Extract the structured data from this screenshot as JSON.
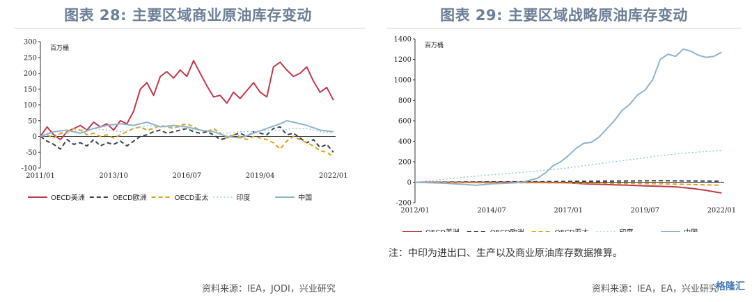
{
  "left": {
    "title": "图表 28: 主要区域商业原油库存变动",
    "source": "资料来源：IEA，JODI，兴业研究"
  },
  "right": {
    "title": "图表 29: 主要区域战略原油库存变动",
    "note": "注：中印为进出口、生产以及商业原油库存数据推算。",
    "source": "资料来源：IEA，EA，兴业研究"
  },
  "watermark": "格隆汇",
  "chart_data": [
    {
      "type": "line",
      "unit_label": "百万桶",
      "ylim": [
        -100,
        300
      ],
      "yticks": [
        -100,
        -50,
        0,
        50,
        100,
        150,
        200,
        250,
        300
      ],
      "xlim": [
        2011.0,
        2022.083
      ],
      "xticks": [
        {
          "label": "2011/01",
          "x": 2011.0
        },
        {
          "label": "2013/10",
          "x": 2013.75
        },
        {
          "label": "2016/07",
          "x": 2016.5
        },
        {
          "label": "2019/04",
          "x": 2019.25
        },
        {
          "label": "2022/01",
          "x": 2022.0
        }
      ],
      "grid": false,
      "legend_position": "bottom",
      "series": [
        {
          "name": "OECD美洲",
          "color": "#c0394b",
          "dash": "solid",
          "x": [
            2011.0,
            2011.25,
            2011.5,
            2011.75,
            2012.0,
            2012.25,
            2012.5,
            2012.75,
            2013.0,
            2013.25,
            2013.5,
            2013.75,
            2014.0,
            2014.25,
            2014.5,
            2014.75,
            2015.0,
            2015.25,
            2015.5,
            2015.75,
            2016.0,
            2016.25,
            2016.5,
            2016.75,
            2017.0,
            2017.25,
            2017.5,
            2017.75,
            2018.0,
            2018.25,
            2018.5,
            2018.75,
            2019.0,
            2019.25,
            2019.5,
            2019.75,
            2020.0,
            2020.25,
            2020.5,
            2020.75,
            2021.0,
            2021.25,
            2021.5,
            2021.75,
            2022.0
          ],
          "y": [
            0,
            30,
            5,
            -10,
            15,
            25,
            35,
            20,
            45,
            30,
            40,
            20,
            50,
            40,
            80,
            150,
            170,
            130,
            190,
            205,
            185,
            210,
            190,
            240,
            200,
            160,
            125,
            130,
            105,
            140,
            120,
            145,
            170,
            140,
            125,
            220,
            235,
            210,
            190,
            200,
            220,
            175,
            140,
            155,
            115
          ]
        },
        {
          "name": "OECD欧洲",
          "color": "#3a3f4a",
          "dash": "6,4",
          "x": [
            2011.0,
            2011.25,
            2011.5,
            2011.75,
            2012.0,
            2012.25,
            2012.5,
            2012.75,
            2013.0,
            2013.25,
            2013.5,
            2013.75,
            2014.0,
            2014.25,
            2014.5,
            2014.75,
            2015.0,
            2015.25,
            2015.5,
            2015.75,
            2016.0,
            2016.25,
            2016.5,
            2016.75,
            2017.0,
            2017.25,
            2017.5,
            2017.75,
            2018.0,
            2018.25,
            2018.5,
            2018.75,
            2019.0,
            2019.25,
            2019.5,
            2019.75,
            2020.0,
            2020.25,
            2020.5,
            2020.75,
            2021.0,
            2021.25,
            2021.5,
            2021.75,
            2022.0
          ],
          "y": [
            0,
            -15,
            -25,
            -40,
            -10,
            -25,
            -20,
            -30,
            -10,
            -30,
            -20,
            -25,
            -15,
            -30,
            -15,
            0,
            5,
            15,
            20,
            10,
            15,
            20,
            25,
            15,
            10,
            15,
            5,
            -10,
            -5,
            5,
            10,
            0,
            15,
            10,
            5,
            25,
            30,
            5,
            10,
            -5,
            -20,
            -10,
            -35,
            -25,
            -50
          ]
        },
        {
          "name": "OECD亚太",
          "color": "#e0a020",
          "dash": "6,4",
          "x": [
            2011.0,
            2011.25,
            2011.5,
            2011.75,
            2012.0,
            2012.25,
            2012.5,
            2012.75,
            2013.0,
            2013.25,
            2013.5,
            2013.75,
            2014.0,
            2014.25,
            2014.5,
            2014.75,
            2015.0,
            2015.25,
            2015.5,
            2015.75,
            2016.0,
            2016.25,
            2016.5,
            2016.75,
            2017.0,
            2017.25,
            2017.5,
            2017.75,
            2018.0,
            2018.25,
            2018.5,
            2018.75,
            2019.0,
            2019.25,
            2019.5,
            2019.75,
            2020.0,
            2020.25,
            2020.5,
            2020.75,
            2021.0,
            2021.25,
            2021.5,
            2021.75,
            2022.0
          ],
          "y": [
            0,
            5,
            -5,
            10,
            15,
            25,
            20,
            5,
            10,
            0,
            5,
            -5,
            5,
            15,
            25,
            30,
            20,
            25,
            35,
            30,
            25,
            35,
            40,
            30,
            20,
            15,
            25,
            10,
            -5,
            5,
            0,
            -10,
            0,
            -5,
            -10,
            -20,
            -40,
            -15,
            0,
            -10,
            -20,
            -30,
            -45,
            -50,
            -65
          ]
        },
        {
          "name": "印度",
          "color": "#7fc8cf",
          "dash": "2,3",
          "x": [
            2011.0,
            2011.5,
            2012.0,
            2012.5,
            2013.0,
            2013.5,
            2014.0,
            2014.5,
            2015.0,
            2015.5,
            2016.0,
            2016.5,
            2017.0,
            2017.5,
            2018.0,
            2018.5,
            2019.0,
            2019.5,
            2020.0,
            2020.5,
            2021.0,
            2021.5,
            2022.0
          ],
          "y": [
            0,
            5,
            10,
            20,
            25,
            20,
            15,
            25,
            35,
            30,
            30,
            25,
            20,
            15,
            10,
            15,
            15,
            20,
            20,
            25,
            25,
            15,
            10
          ]
        },
        {
          "name": "中国",
          "color": "#8fb3cc",
          "dash": "solid",
          "x": [
            2011.0,
            2011.5,
            2012.0,
            2012.5,
            2013.0,
            2013.5,
            2014.0,
            2014.5,
            2015.0,
            2015.5,
            2016.0,
            2016.5,
            2017.0,
            2017.5,
            2018.0,
            2018.5,
            2019.0,
            2019.5,
            2020.0,
            2020.25,
            2020.5,
            2020.75,
            2021.0,
            2021.5,
            2022.0
          ],
          "y": [
            0,
            15,
            20,
            10,
            25,
            35,
            40,
            35,
            45,
            30,
            35,
            30,
            20,
            15,
            0,
            -5,
            10,
            25,
            40,
            50,
            45,
            40,
            35,
            20,
            15
          ]
        }
      ]
    },
    {
      "type": "line",
      "unit_label": "百万桶",
      "ylim": [
        -200,
        1400
      ],
      "yticks": [
        -200,
        0,
        200,
        400,
        600,
        800,
        1000,
        1200,
        1400
      ],
      "xlim": [
        2012.0,
        2022.083
      ],
      "xticks": [
        {
          "label": "2012/01",
          "x": 2012.0
        },
        {
          "label": "2014/07",
          "x": 2014.5
        },
        {
          "label": "2017/01",
          "x": 2017.0
        },
        {
          "label": "2019/07",
          "x": 2019.5
        },
        {
          "label": "2022/01",
          "x": 2022.0
        }
      ],
      "grid": false,
      "legend_position": "bottom",
      "series": [
        {
          "name": "OECD美洲",
          "color": "#c0394b",
          "dash": "solid",
          "x": [
            2012.0,
            2013.0,
            2014.0,
            2015.0,
            2016.0,
            2017.0,
            2017.5,
            2018.0,
            2018.5,
            2019.0,
            2019.5,
            2020.0,
            2020.5,
            2021.0,
            2021.5,
            2022.0
          ],
          "y": [
            0,
            0,
            0,
            0,
            0,
            -5,
            -15,
            -20,
            -25,
            -30,
            -35,
            -40,
            -45,
            -60,
            -80,
            -105
          ]
        },
        {
          "name": "OECD欧洲",
          "color": "#3a3f4a",
          "dash": "6,4",
          "x": [
            2012.0,
            2014.0,
            2016.0,
            2018.0,
            2020.0,
            2022.0
          ],
          "y": [
            0,
            3,
            5,
            10,
            15,
            10
          ]
        },
        {
          "name": "OECD亚太",
          "color": "#e0a020",
          "dash": "6,4",
          "x": [
            2012.0,
            2014.0,
            2016.0,
            2018.0,
            2020.0,
            2022.0
          ],
          "y": [
            0,
            -5,
            -5,
            -10,
            -15,
            -30
          ]
        },
        {
          "name": "印度",
          "color": "#7fc8cf",
          "dash": "2,3",
          "x": [
            2012.0,
            2013.0,
            2014.0,
            2015.0,
            2016.0,
            2017.0,
            2018.0,
            2019.0,
            2020.0,
            2021.0,
            2022.0
          ],
          "y": [
            0,
            30,
            60,
            85,
            110,
            140,
            180,
            220,
            260,
            290,
            310
          ]
        },
        {
          "name": "中国",
          "color": "#8fb3cc",
          "dash": "solid",
          "x": [
            2012.0,
            2012.5,
            2013.0,
            2013.5,
            2014.0,
            2014.5,
            2015.0,
            2015.5,
            2016.0,
            2016.25,
            2016.5,
            2016.75,
            2017.0,
            2017.25,
            2017.5,
            2017.75,
            2018.0,
            2018.25,
            2018.5,
            2018.75,
            2019.0,
            2019.25,
            2019.5,
            2019.75,
            2020.0,
            2020.25,
            2020.5,
            2020.75,
            2021.0,
            2021.25,
            2021.5,
            2021.75,
            2022.0
          ],
          "y": [
            0,
            -5,
            -10,
            -20,
            -30,
            -15,
            -10,
            0,
            40,
            90,
            160,
            200,
            260,
            330,
            380,
            390,
            440,
            520,
            600,
            700,
            760,
            850,
            900,
            1000,
            1200,
            1250,
            1230,
            1300,
            1280,
            1240,
            1220,
            1230,
            1270
          ]
        }
      ]
    }
  ]
}
